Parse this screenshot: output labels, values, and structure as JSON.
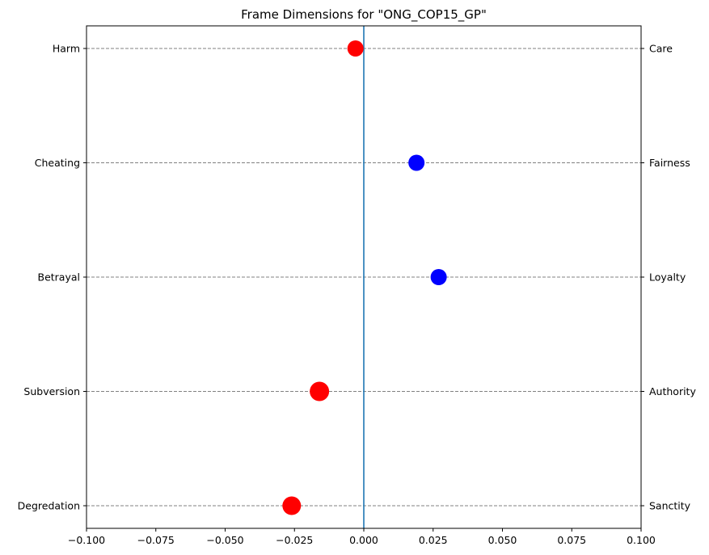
{
  "chart_data": {
    "type": "scatter",
    "title": "Frame Dimensions for \"ONG_COP15_GP\"",
    "xlim": [
      -0.1,
      0.1
    ],
    "x_ticks": [
      -0.1,
      -0.075,
      -0.05,
      -0.025,
      0.0,
      0.025,
      0.05,
      0.075,
      0.1
    ],
    "x_tick_labels": [
      "−0.100",
      "−0.075",
      "−0.050",
      "−0.025",
      "0.000",
      "0.025",
      "0.050",
      "0.075",
      "0.100"
    ],
    "left_labels": [
      "Harm",
      "Cheating",
      "Betrayal",
      "Subversion",
      "Degredation"
    ],
    "right_labels": [
      "Care",
      "Fairness",
      "Loyalty",
      "Authority",
      "Sanctity"
    ],
    "values": [
      -0.003,
      0.019,
      0.027,
      -0.016,
      -0.026
    ],
    "point_colors": [
      "#ff0000",
      "#0000ff",
      "#0000ff",
      "#ff0000",
      "#ff0000"
    ],
    "point_sizes": [
      1.0,
      1.0,
      1.0,
      1.2,
      1.15
    ],
    "zero_line": 0.0,
    "zero_line_color": "#1f77b4",
    "grid_color": "#808080",
    "grid": "horizontal-dashed"
  }
}
